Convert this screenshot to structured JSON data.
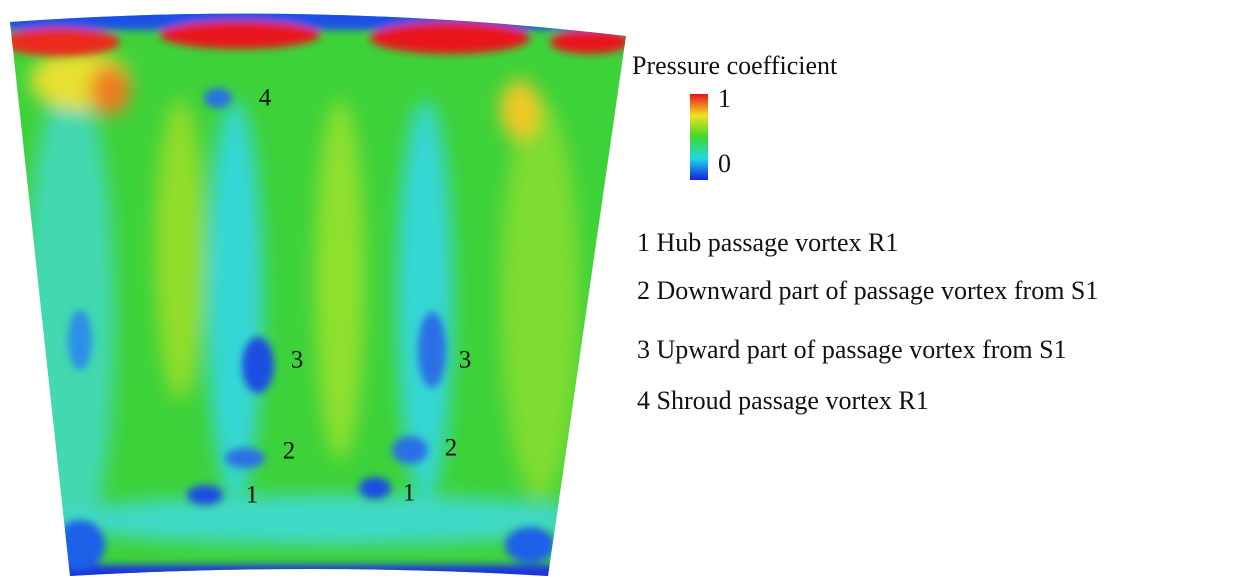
{
  "legend": {
    "title": "Pressure coefficient",
    "max_label": "1",
    "min_label": "0"
  },
  "plot_labels": [
    "4",
    "3",
    "3",
    "2",
    "2",
    "1",
    "1"
  ],
  "annotations": [
    "1 Hub passage vortex R1",
    "2 Downward part of passage vortex from S1",
    "3 Upward part of passage vortex from S1",
    "4 Shroud passage vortex R1"
  ]
}
